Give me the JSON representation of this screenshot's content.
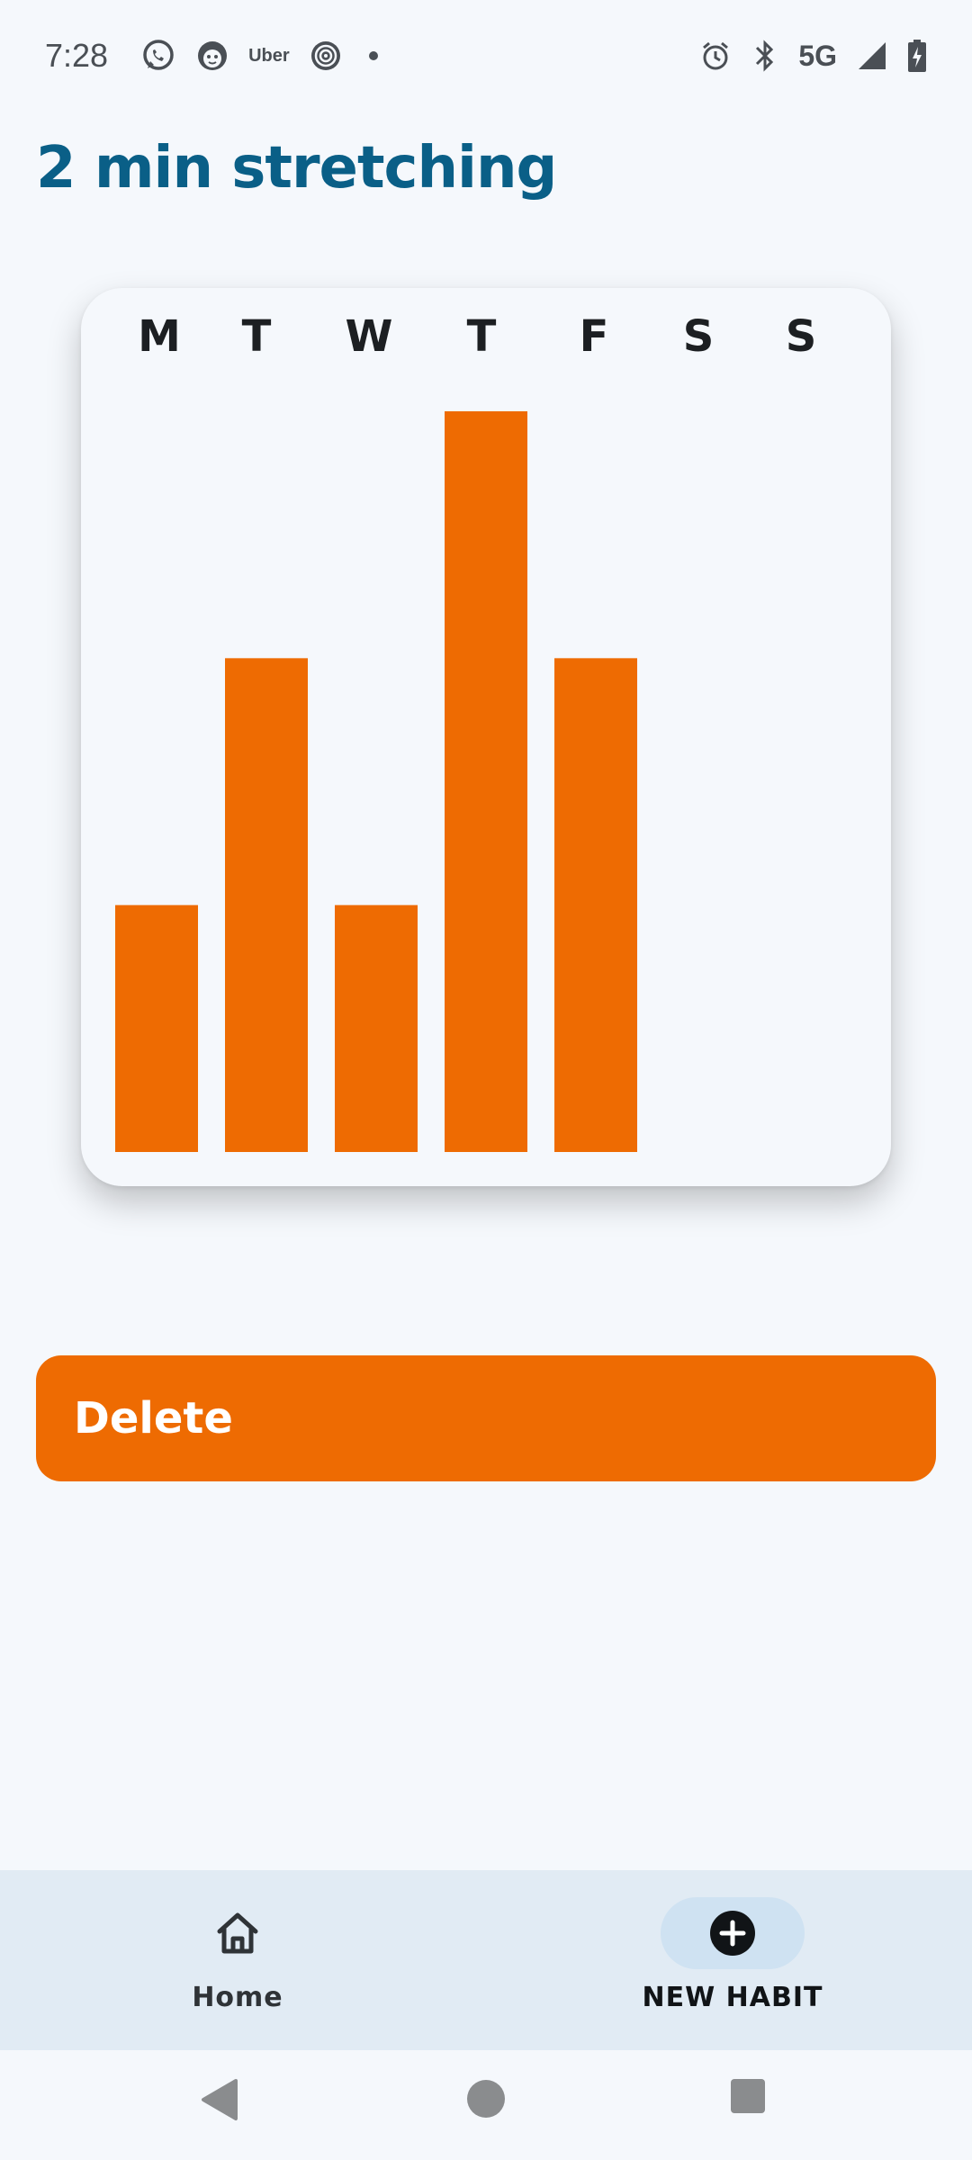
{
  "status_bar": {
    "time": "7:28",
    "app_icons": [
      "whatsapp-icon",
      "cat-face-icon",
      "uber-icon",
      "target-icon",
      "dot-icon"
    ],
    "uber_label": "Uber",
    "network": "5G",
    "right_icons": [
      "alarm-icon",
      "bluetooth-icon",
      "signal-icon",
      "battery-charging-icon"
    ]
  },
  "page": {
    "title": "2 min stretching"
  },
  "colors": {
    "accent": "#ee6b02",
    "title": "#0a5f87",
    "background": "#f5f8fc",
    "nav_bg": "#e1ebf4"
  },
  "chart_data": {
    "type": "bar",
    "categories": [
      "M",
      "T",
      "W",
      "T",
      "F",
      "S",
      "S"
    ],
    "values": [
      1,
      2,
      1,
      3,
      2,
      0,
      0
    ],
    "ylim": [
      0,
      3
    ],
    "grid": false,
    "color": "#ee6b02"
  },
  "actions": {
    "delete_label": "Delete"
  },
  "bottom_nav": {
    "items": [
      {
        "label": "Home",
        "icon": "home-icon",
        "active": false
      },
      {
        "label": "NEW HABIT",
        "icon": "plus-circle-icon",
        "active": true
      }
    ]
  },
  "system_nav": {
    "buttons": [
      "back-icon",
      "home-circle-icon",
      "recents-icon"
    ]
  }
}
